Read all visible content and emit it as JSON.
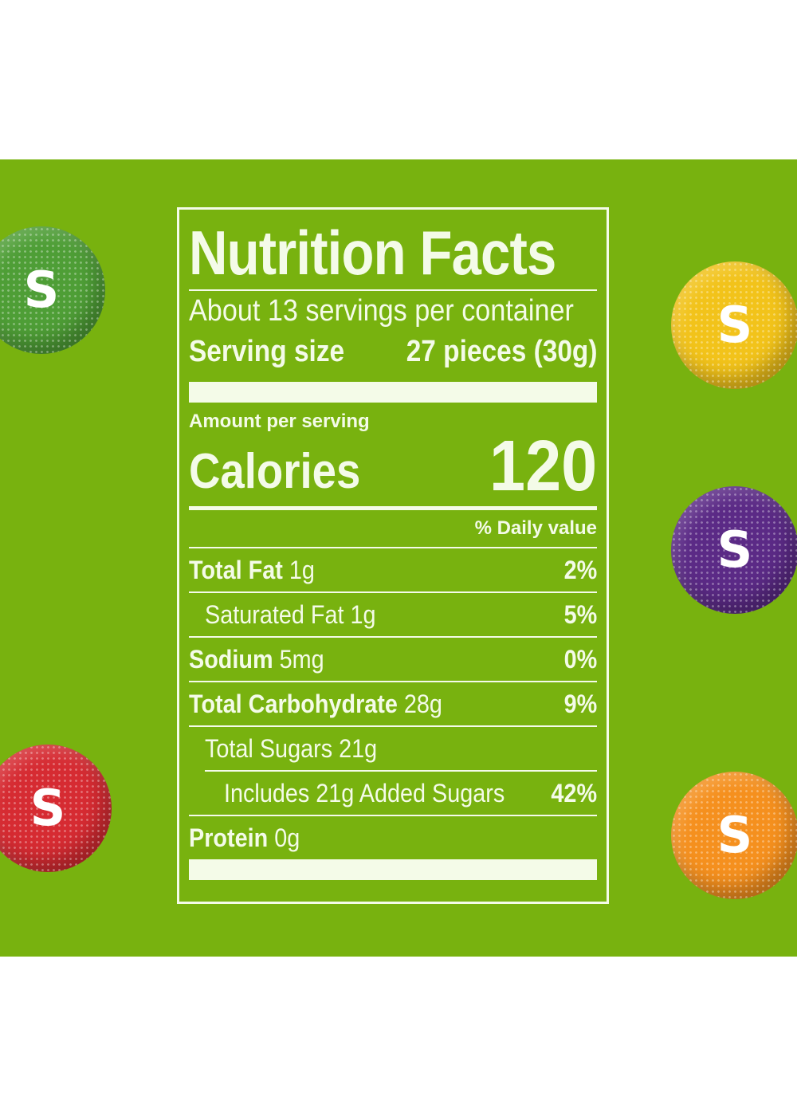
{
  "candies": [
    {
      "name": "green-candy",
      "color": "#4e9e36",
      "letter": "S"
    },
    {
      "name": "yellow-candy",
      "color": "#f2c31a",
      "letter": "S"
    },
    {
      "name": "purple-candy",
      "color": "#5b2a86",
      "letter": "S"
    },
    {
      "name": "red-candy",
      "color": "#d62b32",
      "letter": "S"
    },
    {
      "name": "orange-candy",
      "color": "#f5901e",
      "letter": "S"
    }
  ],
  "colors": {
    "background": "#78b20f",
    "label_ink": "#f4fbe8"
  },
  "label": {
    "title": "Nutrition Facts",
    "servings_per_container": "About 13 servings per container",
    "serving_size_label": "Serving size",
    "serving_size_value": "27 pieces (30g)",
    "amount_per_serving": "Amount per serving",
    "calories_label": "Calories",
    "calories_value": "120",
    "daily_value_header": "% Daily value",
    "nutrients": [
      {
        "name": "Total Fat",
        "amount": "1g",
        "dv": "2%"
      },
      {
        "name": "Saturated Fat",
        "amount": "1g",
        "dv": "5%"
      },
      {
        "name": "Sodium",
        "amount": "5mg",
        "dv": "0%"
      },
      {
        "name": "Total Carbohydrate",
        "amount": "28g",
        "dv": "9%"
      },
      {
        "name": "Total Sugars",
        "amount": "21g",
        "dv": ""
      },
      {
        "name": "Includes 21g Added Sugars",
        "amount": "",
        "dv": "42%"
      },
      {
        "name": "Protein",
        "amount": "0g",
        "dv": ""
      }
    ]
  }
}
